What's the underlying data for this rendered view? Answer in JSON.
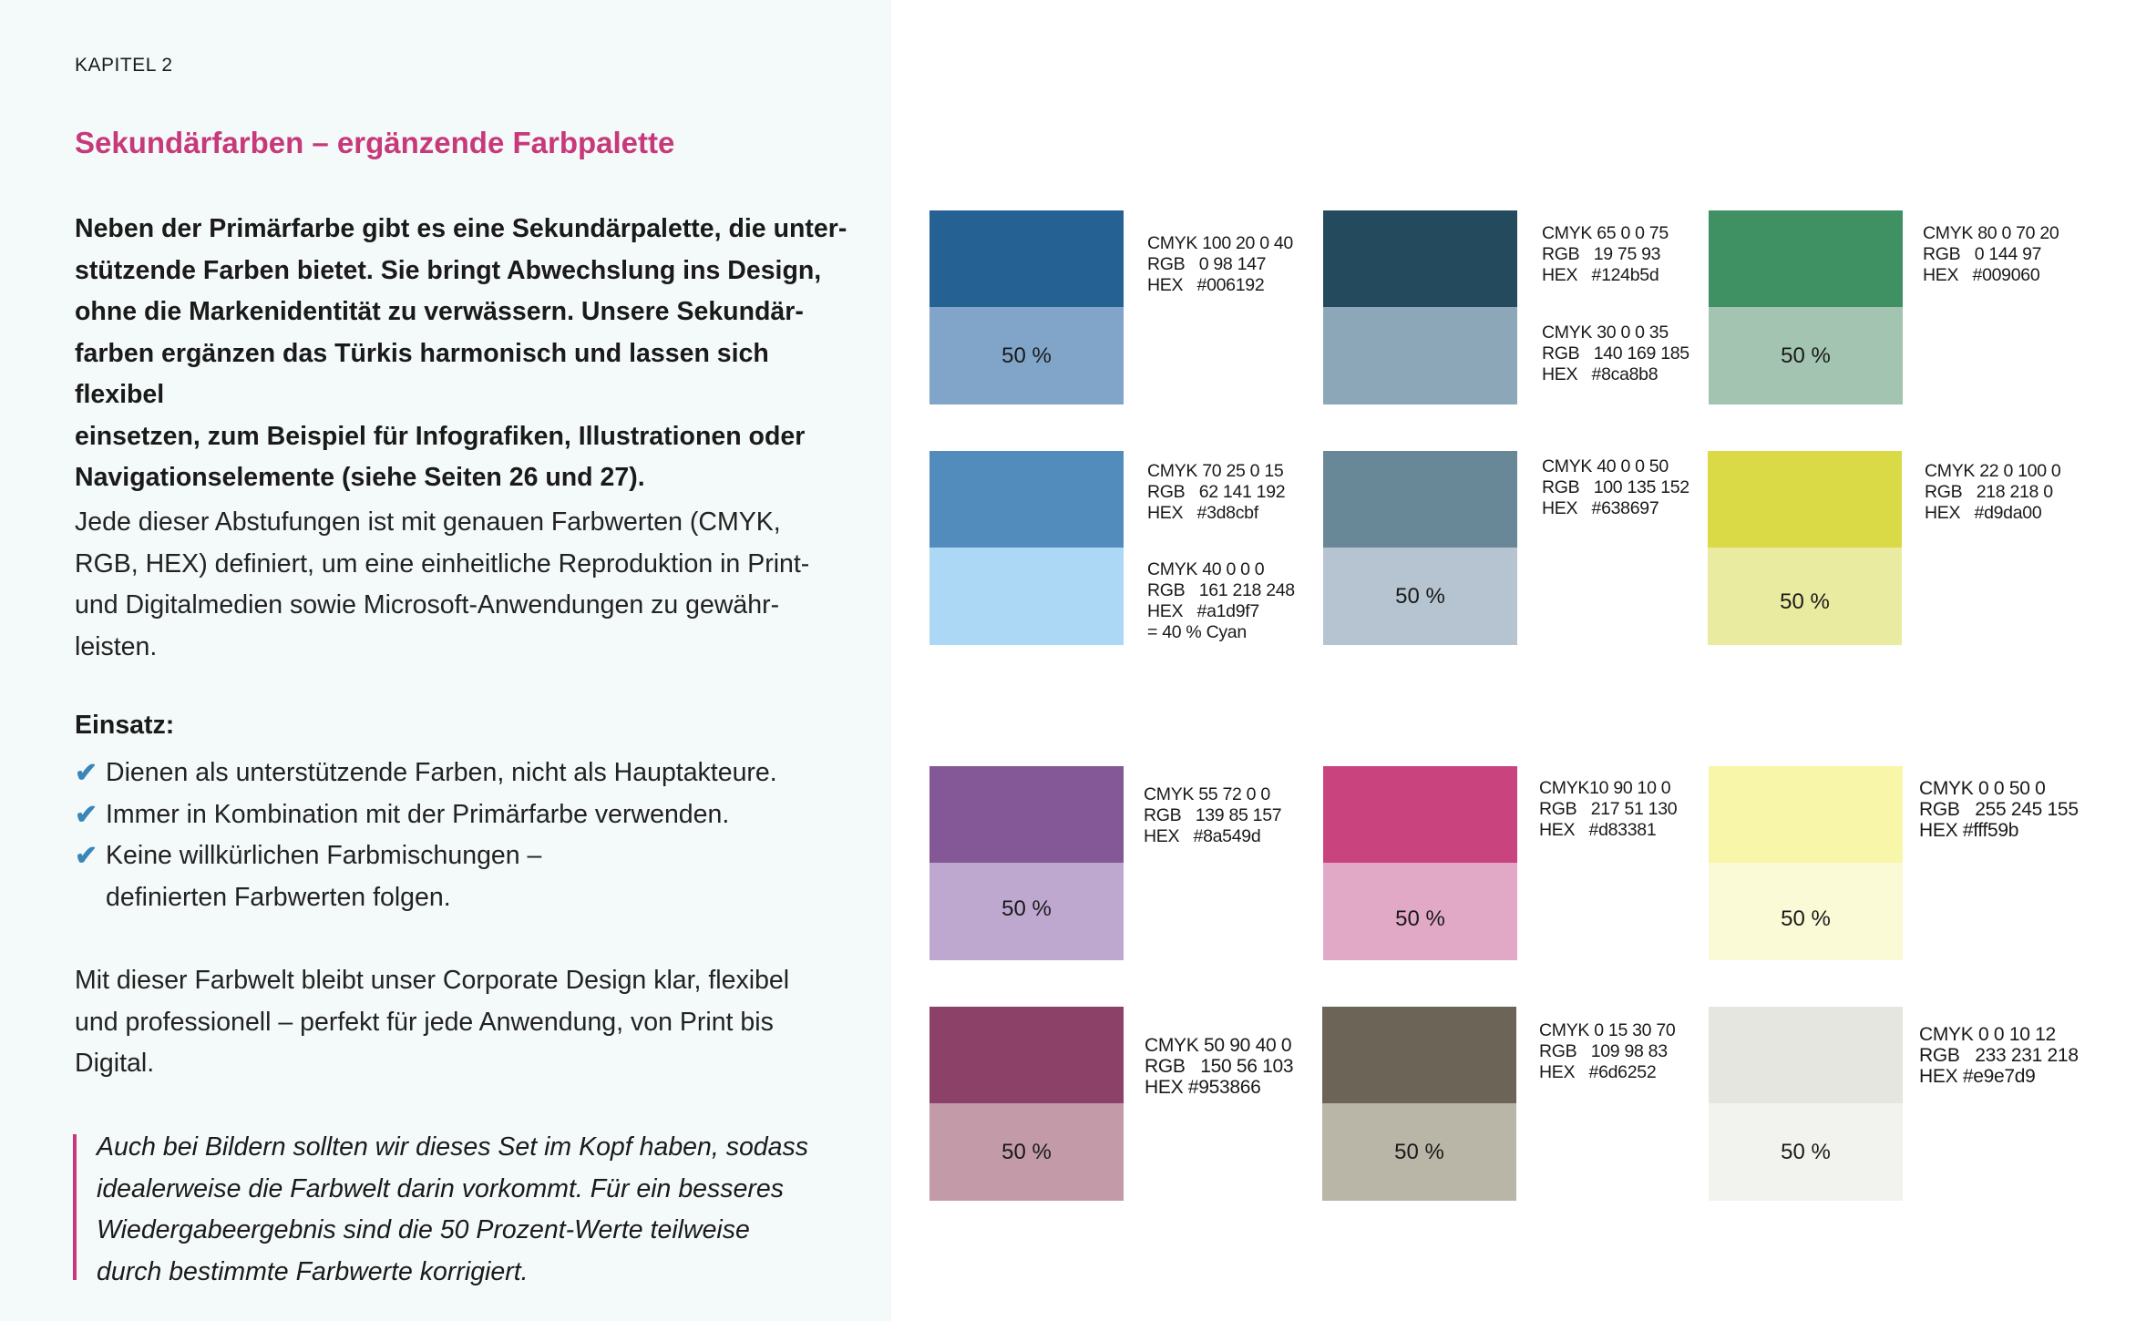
{
  "chapter": "KAPITEL 2",
  "title": "Sekundärfarben – ergänzende Farbpalette",
  "intro_lines": [
    "Neben der Primärfarbe gibt es eine Sekundärpalette, die unter-",
    "stützende Farben bietet. Sie bringt Abwechslung ins Design,",
    "ohne die Markenidentität zu verwässern. Unsere Sekundär-",
    "farben ergänzen das Türkis harmonisch und lassen sich flexibel",
    "einsetzen, zum Beispiel für Infografiken, Illustrationen oder",
    "Navigationselemente (siehe Seiten 26 und 27)."
  ],
  "para2_lines": [
    "Jede dieser Abstufungen ist mit genauen Farbwerten (CMYK,",
    "RGB, HEX) definiert, um eine einheitliche Reproduktion in Print-",
    "und Digitalmedien sowie Microsoft-Anwendungen zu gewähr-",
    "leisten."
  ],
  "einsatz_label": "Einsatz:",
  "bullets": [
    "Dienen als unterstützende Farben, nicht als Hauptakteure.",
    "Immer in Kombination mit der Primärfarbe verwenden.",
    "Keine willkürlichen Farbmischungen –",
    "definierten Farbwerten folgen."
  ],
  "para3_lines": [
    "Mit dieser Farbwelt bleibt unser Corporate Design klar, flexibel",
    "und professionell – perfekt für jede Anwendung, von Print bis",
    "Digital."
  ],
  "quote_lines": [
    "Auch bei Bildern sollten wir dieses Set im Kopf haben, sodass",
    "idealerweise die Farbwelt darin vorkommt. Für ein besseres",
    "Wiedergabeergebnis sind die 50 Prozent-Werte teilweise",
    "durch bestimmte Farbwerte korrigiert."
  ],
  "colors": {
    "accent": "#c7397a",
    "check": "#3a86b8",
    "left_bg": "#f4faf9"
  },
  "swatches": [
    {
      "top": "#256192",
      "bottom": "#80a5c9",
      "pct": "50 %"
    },
    {
      "top": "#244b5d",
      "bottom": "#8ca8b8",
      "pct": ""
    },
    {
      "top": "#3f9062",
      "bottom": "#a3c4b0",
      "pct": "50 %"
    },
    {
      "top": "#518cbd",
      "bottom": "#acd8f5",
      "pct": ""
    },
    {
      "top": "#688797",
      "bottom": "#b5c4d0",
      "pct": "50 %"
    },
    {
      "top": "#d9da45",
      "bottom": "#e9eca0",
      "pct": "50 %"
    },
    {
      "top": "#845897",
      "bottom": "#bfa8d0",
      "pct": "50 %"
    },
    {
      "top": "#c9437f",
      "bottom": "#e2a9c6",
      "pct": "50 %"
    },
    {
      "top": "#f8f6a9",
      "bottom": "#fbfad6",
      "pct": "50 %"
    },
    {
      "top": "#8b4168",
      "bottom": "#c29aa8",
      "pct": "50 %"
    },
    {
      "top": "#6b6457",
      "bottom": "#b9b5a7",
      "pct": "50 %"
    },
    {
      "top": "#e5e6df",
      "bottom": "#f2f3ee",
      "pct": "50 %"
    }
  ],
  "values": [
    "CMYK 100 20 0 40\nRGB   0 98 147\nHEX   #006192",
    "CMYK 65 0 0 75\nRGB   19 75 93\nHEX   #124b5d",
    "CMYK 30 0 0 35\nRGB   140 169 185\nHEX   #8ca8b8",
    "CMYK 80 0 70 20\nRGB   0 144 97\nHEX   #009060",
    "CMYK 70 25 0 15\nRGB   62 141 192\nHEX   #3d8cbf",
    "CMYK 40 0 0 0\nRGB   161 218 248\nHEX   #a1d9f7\n= 40 % Cyan",
    "CMYK 40 0 0 50\nRGB   100 135 152\nHEX   #638697",
    "CMYK 22 0 100 0\nRGB   218 218 0\nHEX   #d9da00",
    "CMYK 55 72 0 0\nRGB   139 85 157\nHEX   #8a549d",
    "CMYK10 90 10 0\nRGB   217 51 130\nHEX   #d83381",
    "CMYK 0 0 50 0\nRGB   255 245 155\nHEX #fff59b",
    "CMYK 50 90 40 0\nRGB   150 56 103\nHEX #953866",
    "CMYK 0 15 30 70\nRGB   109 98 83\nHEX   #6d6252",
    "CMYK 0 0 10 12\nRGB   233 231 218\nHEX #e9e7d9"
  ]
}
